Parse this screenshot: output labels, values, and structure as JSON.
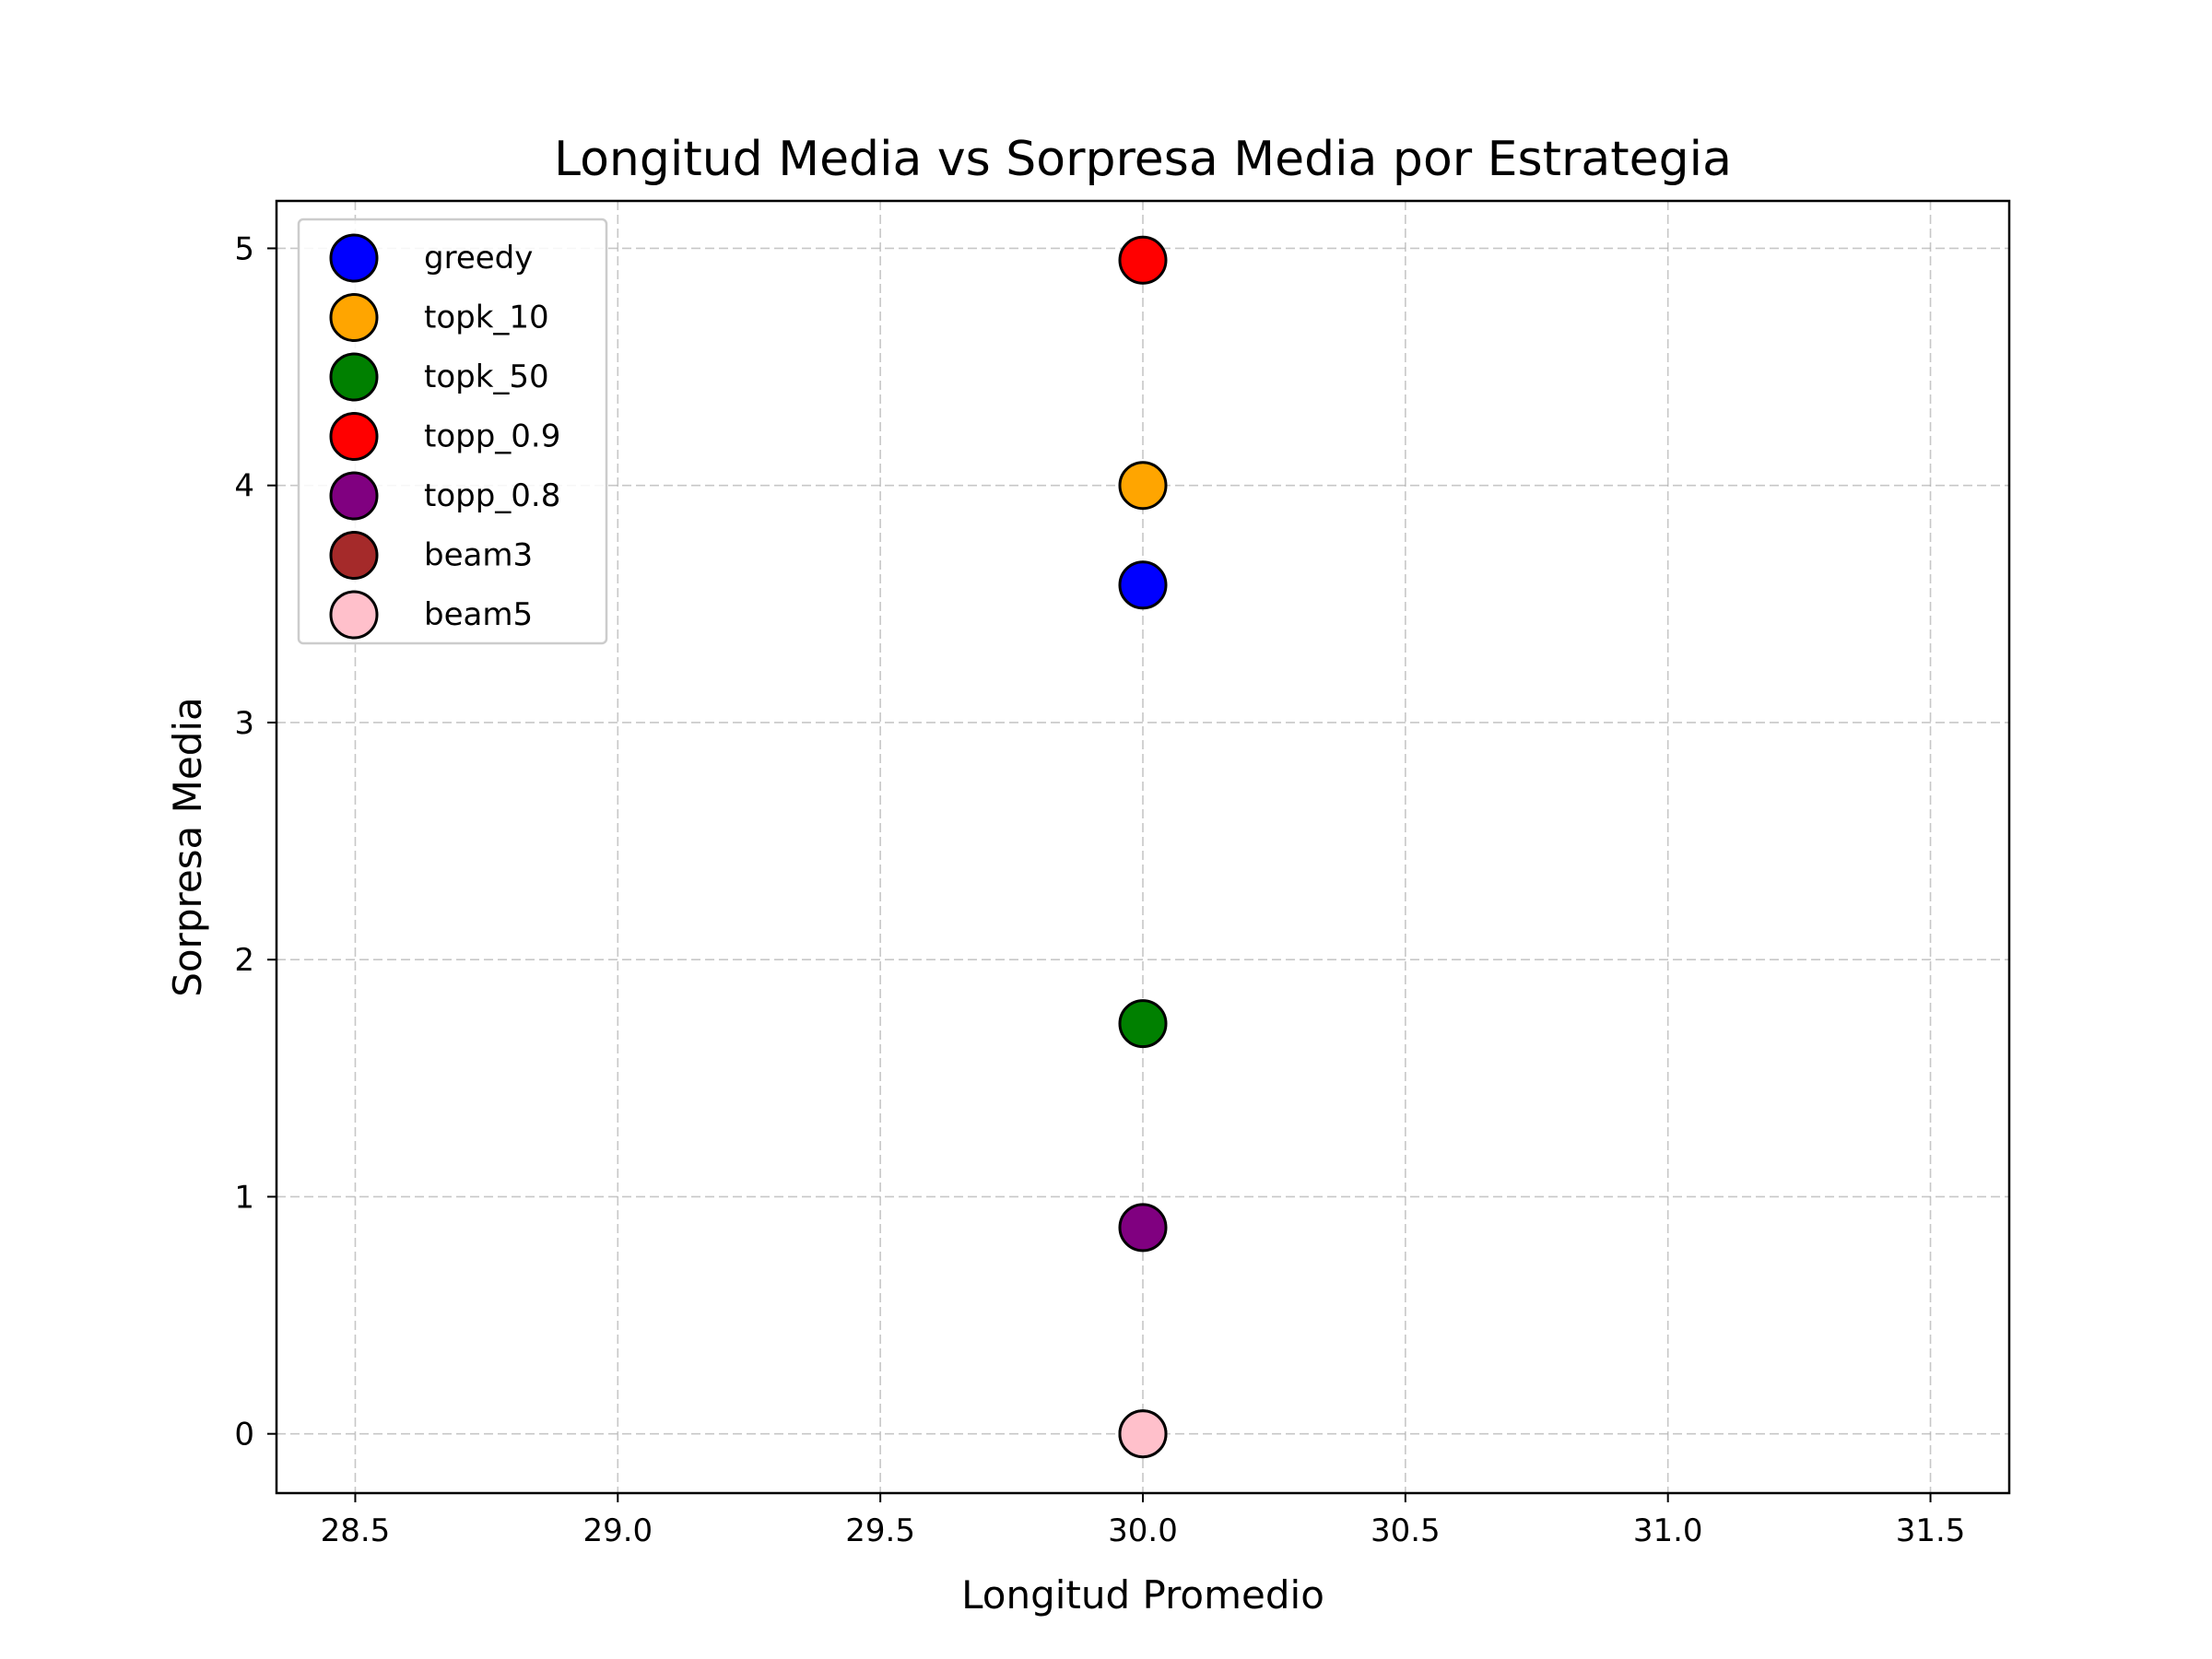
{
  "chart_data": {
    "type": "scatter",
    "title": "Longitud Media vs Sorpresa Media por Estrategia",
    "xlabel": "Longitud Promedio",
    "ylabel": "Sorpresa Media",
    "xlim": [
      28.35,
      31.65
    ],
    "ylim": [
      -0.25,
      5.2
    ],
    "xticks": [
      28.5,
      29.0,
      29.5,
      30.0,
      30.5,
      31.0,
      31.5
    ],
    "xtick_labels": [
      "28.5",
      "29.0",
      "29.5",
      "30.0",
      "30.5",
      "31.0",
      "31.5"
    ],
    "yticks": [
      0,
      1,
      2,
      3,
      4,
      5
    ],
    "ytick_labels": [
      "0",
      "1",
      "2",
      "3",
      "4",
      "5"
    ],
    "grid": true,
    "legend_position": "top-left",
    "series": [
      {
        "name": "greedy",
        "color": "#0000ff",
        "x": 30.0,
        "y": 3.58
      },
      {
        "name": "topk_10",
        "color": "#ffa500",
        "x": 30.0,
        "y": 4.0
      },
      {
        "name": "topk_50",
        "color": "#008000",
        "x": 30.0,
        "y": 1.73
      },
      {
        "name": "topp_0.9",
        "color": "#ff0000",
        "x": 30.0,
        "y": 4.95
      },
      {
        "name": "topp_0.8",
        "color": "#800080",
        "x": 30.0,
        "y": 0.87
      },
      {
        "name": "beam3",
        "color": "#a52a2a",
        "x": 30.0,
        "y": 0.0
      },
      {
        "name": "beam5",
        "color": "#ffc0cb",
        "x": 30.0,
        "y": 0.0
      }
    ]
  }
}
